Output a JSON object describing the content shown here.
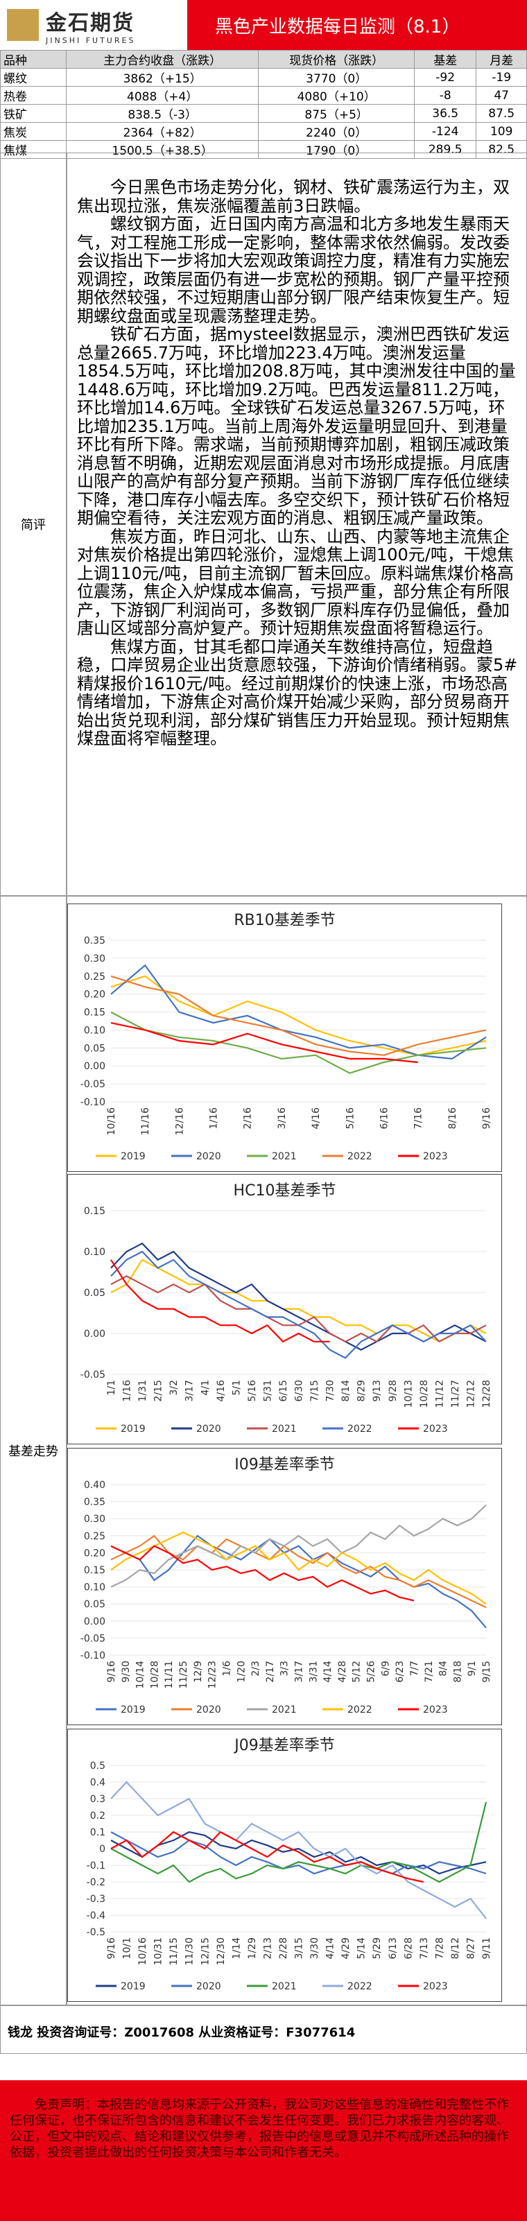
{
  "header": {
    "logo_cn": "金石期货",
    "logo_en": "JINSHI FUTURES",
    "title": "黑色产业数据每日监测（8.1）"
  },
  "table": {
    "headers": [
      "品种",
      "主力合约收盘（涨跌）",
      "现货价格（涨跌）",
      "基差",
      "月差"
    ],
    "rows": [
      [
        "螺纹",
        "3862（+15）",
        "3770（0）",
        "-92",
        "-19"
      ],
      [
        "热卷",
        "4088（+4）",
        "4080（+10）",
        "-8",
        "47"
      ],
      [
        "铁矿",
        "838.5（-3）",
        "875（+5）",
        "36.5",
        "87.5"
      ],
      [
        "焦炭",
        "2364（+82）",
        "2240（0）",
        "-124",
        "109"
      ],
      [
        "焦煤",
        "1500.5（+38.5）",
        "1790（0）",
        "289.5",
        "82.5"
      ]
    ]
  },
  "review": {
    "label": "简评",
    "paragraphs": [
      "今日黑色市场走势分化，钢材、铁矿震荡运行为主，双焦出现拉涨，焦炭涨幅覆盖前3日跌幅。",
      "螺纹钢方面，近日国内南方高温和北方多地发生暴雨天气，对工程施工形成一定影响，整体需求依然偏弱。发改委会议指出下一步将加大宏观政策调控力度，精准有力实施宏观调控，政策层面仍有进一步宽松的预期。钢厂产量平控预期依然较强，不过短期唐山部分钢厂限产结束恢复生产。短期螺纹盘面或呈现震荡整理走势。",
      "铁矿石方面，据mysteel数据显示，澳洲巴西铁矿发运总量2665.7万吨，环比增加223.4万吨。澳洲发运量1854.5万吨，环比增加208.8万吨，其中澳洲发往中国的量1448.6万吨，环比增加9.2万吨。巴西发运量811.2万吨，环比增加14.6万吨。全球铁矿石发运总量3267.5万吨，环比增加235.1万吨。当前上周海外发运量明显回升、到港量环比有所下降。需求端，当前预期博弈加剧，粗钢压减政策消息暂不明确，近期宏观层面消息对市场形成提振。月底唐山限产的高炉有部分复产预期。当前下游钢厂库存低位继续下降，港口库存小幅去库。多空交织下，预计铁矿石价格短期偏空看待，关注宏观方面的消息、粗钢压减产量政策。",
      "焦炭方面，昨日河北、山东、山西、内蒙等地主流焦企对焦炭价格提出第四轮涨价，湿熄焦上调100元/吨，干熄焦上调110元/吨，目前主流钢厂暂未回应。原料端焦煤价格高位震荡，焦企入炉煤成本偏高，亏损严重，部分焦企有所限产，下游钢厂利润尚可，多数钢厂原料库存仍显偏低，叠加唐山区域部分高炉复产。预计短期焦炭盘面将暂稳运行。",
      "焦煤方面，甘其毛都口岸通关车数维持高位，短盘趋稳，口岸贸易企业出货意愿较强，下游询价情绪稍弱。蒙5#精煤报价1610元/吨。经过前期煤价的快速上涨，市场恐高情绪增加，下游焦企对高价煤开始减少采购，部分贸易商开始出货兑现利润，部分煤矿销售压力开始显现。预计短期焦煤盘面将窄幅整理。"
    ]
  },
  "basis": {
    "label": "基差走势"
  },
  "chart_data": [
    {
      "type": "line",
      "title": "RB10基差季节",
      "categories": [
        "10/16",
        "11/16",
        "12/16",
        "1/16",
        "2/16",
        "3/16",
        "4/16",
        "5/16",
        "6/16",
        "7/16",
        "8/16",
        "9/16"
      ],
      "ylim": [
        -0.1,
        0.35
      ],
      "yticks": [
        {
          "value": -0.1,
          "label": "-0.10"
        },
        -0.05,
        {
          "value": 0,
          "label": "0.00"
        },
        0.05,
        {
          "value": 0.1,
          "label": "0.10"
        },
        0.15,
        {
          "value": 0.2,
          "label": "0.20"
        },
        0.25,
        {
          "value": 0.3,
          "label": "0.30"
        },
        0.35
      ],
      "series": [
        {
          "name": "2019",
          "color": "#FFC000",
          "values": [
            0.22,
            0.25,
            0.18,
            0.14,
            0.18,
            0.15,
            0.1,
            0.07,
            0.05,
            0.03,
            0.05,
            0.07
          ]
        },
        {
          "name": "2020",
          "color": "#4472C4",
          "values": [
            0.2,
            0.28,
            0.15,
            0.12,
            0.14,
            0.1,
            0.08,
            0.05,
            0.06,
            0.03,
            0.02,
            0.08
          ]
        },
        {
          "name": "2021",
          "color": "#70AD47",
          "values": [
            0.15,
            0.1,
            0.08,
            0.07,
            0.05,
            0.02,
            0.03,
            -0.02,
            0.01,
            0.03,
            0.04,
            0.05
          ]
        },
        {
          "name": "2022",
          "color": "#ED7D31",
          "values": [
            0.25,
            0.22,
            0.2,
            0.14,
            0.12,
            0.1,
            0.06,
            0.04,
            0.03,
            0.06,
            0.08,
            0.1
          ]
        },
        {
          "name": "2023",
          "color": "#FF0000",
          "values": [
            0.12,
            0.1,
            0.07,
            0.06,
            0.09,
            0.06,
            0.04,
            0.02,
            0.02,
            0.01,
            null,
            null
          ]
        }
      ]
    },
    {
      "type": "line",
      "title": "HC10基差季节",
      "categories": [
        "1/1",
        "1/16",
        "1/31",
        "2/15",
        "3/2",
        "3/17",
        "4/1",
        "4/16",
        "5/1",
        "5/16",
        "5/31",
        "6/15",
        "6/30",
        "7/15",
        "7/30",
        "8/14",
        "8/29",
        "9/13",
        "9/28",
        "10/13",
        "10/28",
        "11/12",
        "11/27",
        "12/12",
        "12/28"
      ],
      "ylim": [
        -0.05,
        0.15
      ],
      "yticks": [
        -0.05,
        {
          "value": 0,
          "label": "0.00"
        },
        0.05,
        {
          "value": 0.1,
          "label": "0.10"
        },
        0.15
      ],
      "series": [
        {
          "name": "2019",
          "color": "#FFC000",
          "values": [
            0.05,
            0.06,
            0.09,
            0.08,
            0.07,
            0.06,
            0.06,
            0.05,
            0.05,
            0.04,
            0.04,
            0.03,
            0.03,
            0.02,
            0.02,
            0.01,
            0.01,
            0,
            0.01,
            0.01,
            0,
            -0.01,
            0,
            0.01,
            0
          ]
        },
        {
          "name": "2020",
          "color": "#1F3C88",
          "values": [
            0.08,
            0.1,
            0.11,
            0.09,
            0.1,
            0.08,
            0.07,
            0.06,
            0.05,
            0.06,
            0.04,
            0.03,
            0.02,
            0.01,
            0,
            -0.01,
            -0.02,
            -0.01,
            0,
            0,
            -0.01,
            0,
            0.01,
            0,
            -0.01
          ]
        },
        {
          "name": "2021",
          "color": "#C0504D",
          "values": [
            0.06,
            0.07,
            0.06,
            0.05,
            0.06,
            0.05,
            0.06,
            0.04,
            0.03,
            0.03,
            0.02,
            0.01,
            0.01,
            0.02,
            0,
            -0.01,
            0,
            -0.01,
            0.01,
            0,
            0.01,
            -0.01,
            0,
            0,
            0.01
          ]
        },
        {
          "name": "2022",
          "color": "#4472C4",
          "values": [
            0.07,
            0.09,
            0.1,
            0.08,
            0.09,
            0.07,
            0.06,
            0.05,
            0.04,
            0.03,
            0.02,
            0.02,
            0.01,
            0,
            -0.02,
            -0.03,
            -0.01,
            0,
            0.01,
            0,
            -0.01,
            0,
            0,
            0.01,
            -0.01
          ]
        },
        {
          "name": "2023",
          "color": "#FF0000",
          "values": [
            0.09,
            0.06,
            0.04,
            0.03,
            0.03,
            0.02,
            0.02,
            0.01,
            0.01,
            0,
            0.01,
            -0.01,
            0,
            -0.01,
            -0.01,
            null,
            null,
            null,
            null,
            null,
            null,
            null,
            null,
            null,
            null
          ]
        }
      ]
    },
    {
      "type": "line",
      "title": "I09基差率季节",
      "categories": [
        "9/16",
        "9/30",
        "10/14",
        "10/28",
        "11/11",
        "11/25",
        "12/9",
        "12/23",
        "1/6",
        "1/20",
        "2/3",
        "2/17",
        "3/3",
        "3/17",
        "3/31",
        "4/14",
        "4/28",
        "5/12",
        "5/26",
        "6/9",
        "6/23",
        "7/7",
        "7/21",
        "8/4",
        "8/18",
        "9/1",
        "9/15"
      ],
      "ylim": [
        -0.1,
        0.4
      ],
      "yticks": [
        {
          "value": -0.1,
          "label": "-0.10"
        },
        -0.05,
        {
          "value": 0,
          "label": "0.00"
        },
        0.05,
        {
          "value": 0.1,
          "label": "0.10"
        },
        0.15,
        {
          "value": 0.2,
          "label": "0.20"
        },
        0.25,
        {
          "value": 0.3,
          "label": "0.30"
        },
        0.35,
        {
          "value": 0.4,
          "label": "0.40"
        }
      ],
      "series": [
        {
          "name": "2019",
          "color": "#4472C4",
          "values": [
            0.22,
            0.2,
            0.18,
            0.12,
            0.15,
            0.2,
            0.25,
            0.22,
            0.2,
            0.18,
            0.21,
            0.24,
            0.2,
            0.22,
            0.18,
            0.2,
            0.17,
            0.15,
            0.13,
            0.16,
            0.12,
            0.1,
            0.11,
            0.08,
            0.06,
            0.03,
            -0.02
          ]
        },
        {
          "name": "2020",
          "color": "#ED7D31",
          "values": [
            0.18,
            0.2,
            0.22,
            0.25,
            0.2,
            0.18,
            0.22,
            0.2,
            0.24,
            0.22,
            0.2,
            0.18,
            0.22,
            0.19,
            0.17,
            0.2,
            0.16,
            0.14,
            0.16,
            0.13,
            0.12,
            0.1,
            0.12,
            0.1,
            0.08,
            0.06,
            0.04
          ]
        },
        {
          "name": "2021",
          "color": "#A5A5A5",
          "values": [
            0.1,
            0.12,
            0.15,
            0.14,
            0.18,
            0.2,
            0.22,
            0.2,
            0.18,
            0.22,
            0.2,
            0.24,
            0.22,
            0.25,
            0.22,
            0.24,
            0.2,
            0.22,
            0.26,
            0.24,
            0.28,
            0.25,
            0.27,
            0.3,
            0.28,
            0.3,
            0.34
          ]
        },
        {
          "name": "2022",
          "color": "#FFC000",
          "values": [
            0.15,
            0.18,
            0.2,
            0.22,
            0.24,
            0.26,
            0.24,
            0.22,
            0.18,
            0.2,
            0.22,
            0.18,
            0.2,
            0.15,
            0.18,
            0.16,
            0.2,
            0.18,
            0.15,
            0.17,
            0.14,
            0.12,
            0.15,
            0.12,
            0.1,
            0.08,
            0.05
          ]
        },
        {
          "name": "2023",
          "color": "#FF0000",
          "values": [
            0.22,
            0.2,
            0.18,
            0.22,
            0.2,
            0.17,
            0.18,
            0.15,
            0.16,
            0.14,
            0.15,
            0.12,
            0.14,
            0.12,
            0.13,
            0.1,
            0.12,
            0.1,
            0.08,
            0.09,
            0.07,
            0.06,
            null,
            null,
            null,
            null,
            null
          ]
        }
      ]
    },
    {
      "type": "line",
      "title": "J09基差率季节",
      "categories": [
        "9/16",
        "10/1",
        "10/16",
        "10/31",
        "11/15",
        "11/30",
        "12/15",
        "12/30",
        "1/14",
        "1/29",
        "2/13",
        "2/28",
        "3/15",
        "3/30",
        "4/14",
        "4/29",
        "5/14",
        "5/29",
        "6/13",
        "6/28",
        "7/13",
        "7/28",
        "8/12",
        "8/27",
        "9/11"
      ],
      "ylim": [
        -0.5,
        0.5
      ],
      "yticks": [
        -0.5,
        -0.4,
        -0.3,
        -0.2,
        -0.1,
        0,
        0.1,
        0.2,
        0.3,
        0.4,
        0.5
      ],
      "series": [
        {
          "name": "2019",
          "color": "#1F3C88",
          "values": [
            0.05,
            0,
            -0.05,
            0.02,
            0.05,
            0.1,
            0.08,
            0.02,
            0,
            0.05,
            0.02,
            -0.02,
            0,
            -0.05,
            -0.02,
            -0.08,
            -0.05,
            -0.1,
            -0.08,
            -0.12,
            -0.1,
            -0.15,
            -0.12,
            -0.1,
            -0.08
          ]
        },
        {
          "name": "2020",
          "color": "#4472C4",
          "values": [
            0.1,
            0.05,
            0,
            -0.05,
            -0.02,
            0.05,
            0.02,
            -0.05,
            -0.1,
            -0.05,
            -0.08,
            -0.12,
            -0.1,
            -0.15,
            -0.12,
            -0.1,
            -0.08,
            -0.12,
            -0.15,
            -0.1,
            -0.12,
            -0.08,
            -0.1,
            -0.12,
            -0.15
          ]
        },
        {
          "name": "2021",
          "color": "#3A9B3A",
          "values": [
            0,
            -0.05,
            -0.1,
            -0.15,
            -0.1,
            -0.2,
            -0.15,
            -0.12,
            -0.18,
            -0.15,
            -0.1,
            -0.12,
            -0.08,
            -0.1,
            -0.12,
            -0.15,
            -0.1,
            -0.12,
            -0.08,
            -0.1,
            -0.15,
            -0.2,
            -0.15,
            -0.1,
            0.28
          ]
        },
        {
          "name": "2022",
          "color": "#8FAADC",
          "values": [
            0.3,
            0.4,
            0.3,
            0.2,
            0.25,
            0.3,
            0.15,
            0.1,
            0.05,
            0.15,
            0.1,
            0.05,
            0.1,
            0,
            -0.05,
            0,
            -0.1,
            -0.15,
            -0.1,
            -0.2,
            -0.25,
            -0.3,
            -0.35,
            -0.3,
            -0.42
          ]
        },
        {
          "name": "2023",
          "color": "#FF0000",
          "values": [
            0,
            0.05,
            -0.05,
            0.02,
            0.1,
            0.05,
            0,
            0.1,
            0.05,
            0,
            -0.05,
            0.02,
            -0.02,
            -0.08,
            -0.05,
            -0.1,
            -0.08,
            -0.12,
            -0.15,
            -0.18,
            -0.2,
            null,
            null,
            null,
            null
          ]
        }
      ]
    }
  ],
  "footer": {
    "contact": "钱龙 投资咨询证号：Z0017608 从业资格证号：F3077614",
    "disclaimer": "免责声明：本报告的信息均来源于公开资料，我公司对这些信息的准确性和完整性不作任何保证，也不保证所包含的信息和建议不会发生任何变更。我们已力求报告内容的客观、公正，但文中的观点、结论和建议仅供参考，报告中的信息或意见并不构成所述品种的操作依据，投资者据此做出的任何投资决策与本公司和作者无关。"
  }
}
